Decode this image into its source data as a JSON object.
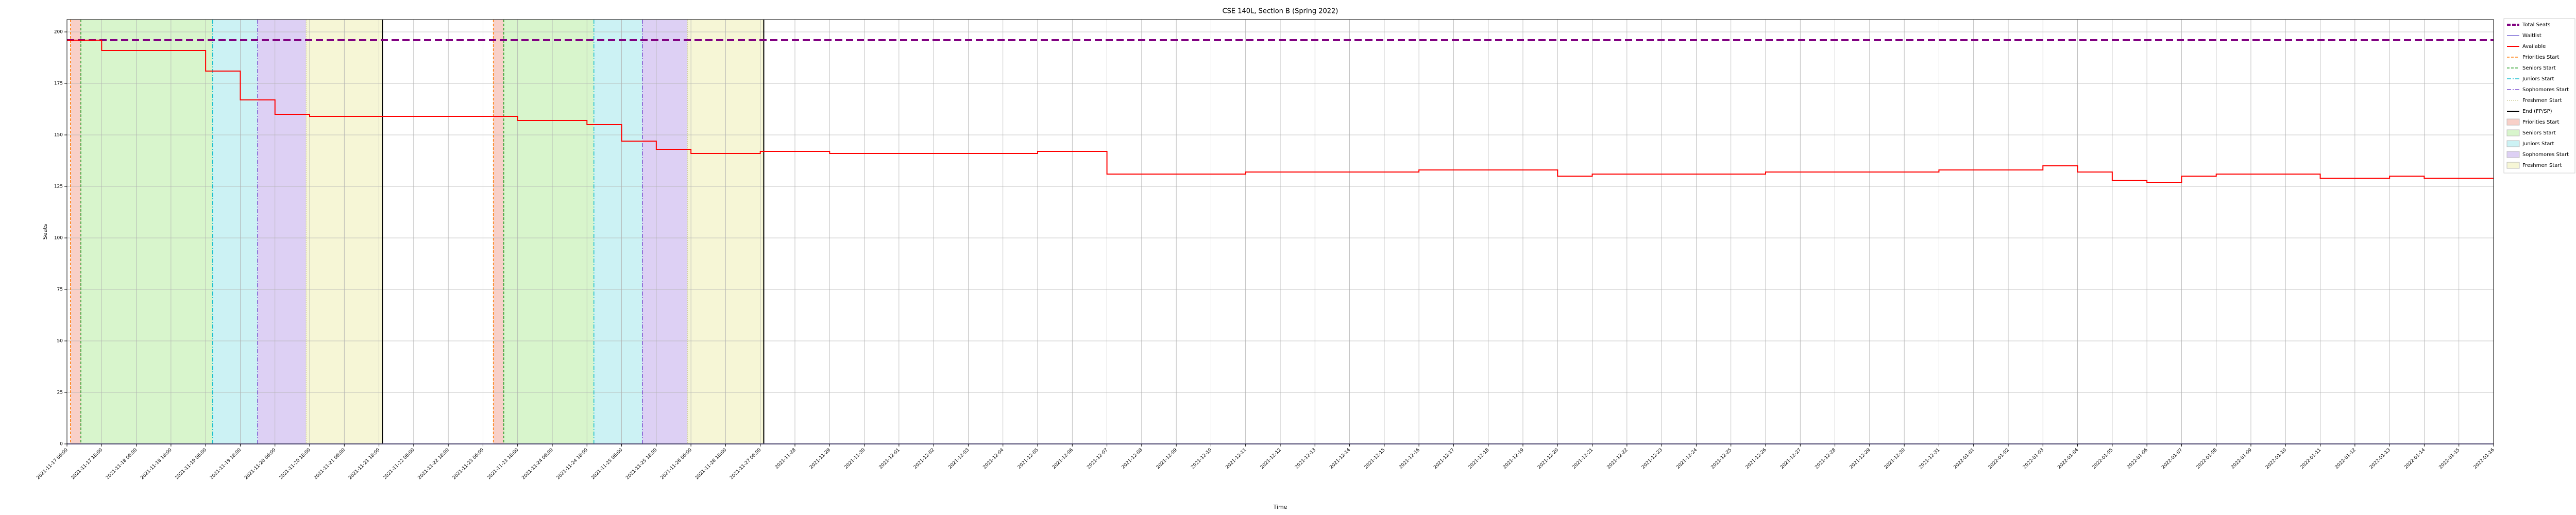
{
  "chart_data": {
    "type": "line",
    "title": "CSE 140L, Section B (Spring 2022)",
    "xlabel": "Time",
    "ylabel": "Seats",
    "ylim": [
      0,
      206
    ],
    "yticks": [
      0,
      25,
      50,
      75,
      100,
      125,
      150,
      175,
      200
    ],
    "xlim": [
      0,
      70
    ],
    "grid": true,
    "legend": "outside right",
    "categories": [
      "2021-11-17 06:00",
      "2021-11-17 18:00",
      "2021-11-18 06:00",
      "2021-11-18 18:00",
      "2021-11-19 06:00",
      "2021-11-19 18:00",
      "2021-11-20 06:00",
      "2021-11-20 18:00",
      "2021-11-21 06:00",
      "2021-11-21 18:00",
      "2021-11-22 06:00",
      "2021-11-22 18:00",
      "2021-11-23 06:00",
      "2021-11-23 18:00",
      "2021-11-24 06:00",
      "2021-11-24 18:00",
      "2021-11-25 06:00",
      "2021-11-25 18:00",
      "2021-11-26 06:00",
      "2021-11-26 18:00",
      "2021-11-27 06:00",
      "2021-11-28",
      "2021-11-29",
      "2021-11-30",
      "2021-12-01",
      "2021-12-02",
      "2021-12-03",
      "2021-12-04",
      "2021-12-05",
      "2021-12-06",
      "2021-12-07",
      "2021-12-08",
      "2021-12-09",
      "2021-12-10",
      "2021-12-11",
      "2021-12-12",
      "2021-12-13",
      "2021-12-14",
      "2021-12-15",
      "2021-12-16",
      "2021-12-17",
      "2021-12-18",
      "2021-12-19",
      "2021-12-20",
      "2021-12-21",
      "2021-12-22",
      "2021-12-23",
      "2021-12-24",
      "2021-12-25",
      "2021-12-26",
      "2021-12-27",
      "2021-12-28",
      "2021-12-29",
      "2021-12-30",
      "2021-12-31",
      "2022-01-01",
      "2022-01-02",
      "2022-01-03",
      "2022-01-04",
      "2022-01-05",
      "2022-01-06",
      "2022-01-07",
      "2022-01-08",
      "2022-01-09",
      "2022-01-10",
      "2022-01-11",
      "2022-01-12",
      "2022-01-13",
      "2022-01-14",
      "2022-01-15",
      "2022-01-16"
    ],
    "hlines": [
      {
        "name": "Total Seats",
        "value": 196,
        "color": "#800080"
      },
      {
        "name": "Waitlist",
        "value": 0,
        "color": "#9b8fe0"
      }
    ],
    "series": [
      {
        "name": "Available",
        "color": "#ff0000",
        "values": [
          196,
          191,
          191,
          191,
          181,
          167,
          160,
          159,
          159,
          159,
          159,
          159,
          159,
          157,
          157,
          155,
          147,
          143,
          141,
          141,
          142,
          142,
          141,
          141,
          141,
          141,
          141,
          141,
          142,
          142,
          131,
          131,
          131,
          131,
          132,
          132,
          132,
          132,
          132,
          133,
          133,
          133,
          133,
          130,
          131,
          131,
          131,
          131,
          131,
          132,
          132,
          132,
          132,
          132,
          133,
          133,
          133,
          135,
          132,
          128,
          127,
          130,
          131,
          131,
          131,
          129,
          129,
          130,
          129,
          129,
          129
        ]
      }
    ],
    "phases": [
      {
        "name": "Priorities Start",
        "line_color": "#ff7f0e",
        "span_color": "#f8d0c8"
      },
      {
        "name": "Seniors Start",
        "line_color": "#2ca02c",
        "span_color": "#d8f5cc"
      },
      {
        "name": "Juniors Start",
        "line_color": "#17becf",
        "span_color": "#ccf2f4"
      },
      {
        "name": "Sophomores Start",
        "line_color": "#7b4fd0",
        "span_color": "#ddd0f4"
      },
      {
        "name": "Freshmen Start",
        "line_color": "#d0d0a0",
        "span_color": "#f6f6d6"
      }
    ],
    "end_name": "End (FP/SP)",
    "end_color": "#000000",
    "passes": [
      {
        "starts": [
          0.1,
          0.4,
          4.2,
          5.5,
          6.9
        ],
        "end": 9.1
      },
      {
        "starts": [
          12.3,
          12.6,
          15.2,
          16.6,
          17.9
        ],
        "end": 20.1
      }
    ]
  }
}
